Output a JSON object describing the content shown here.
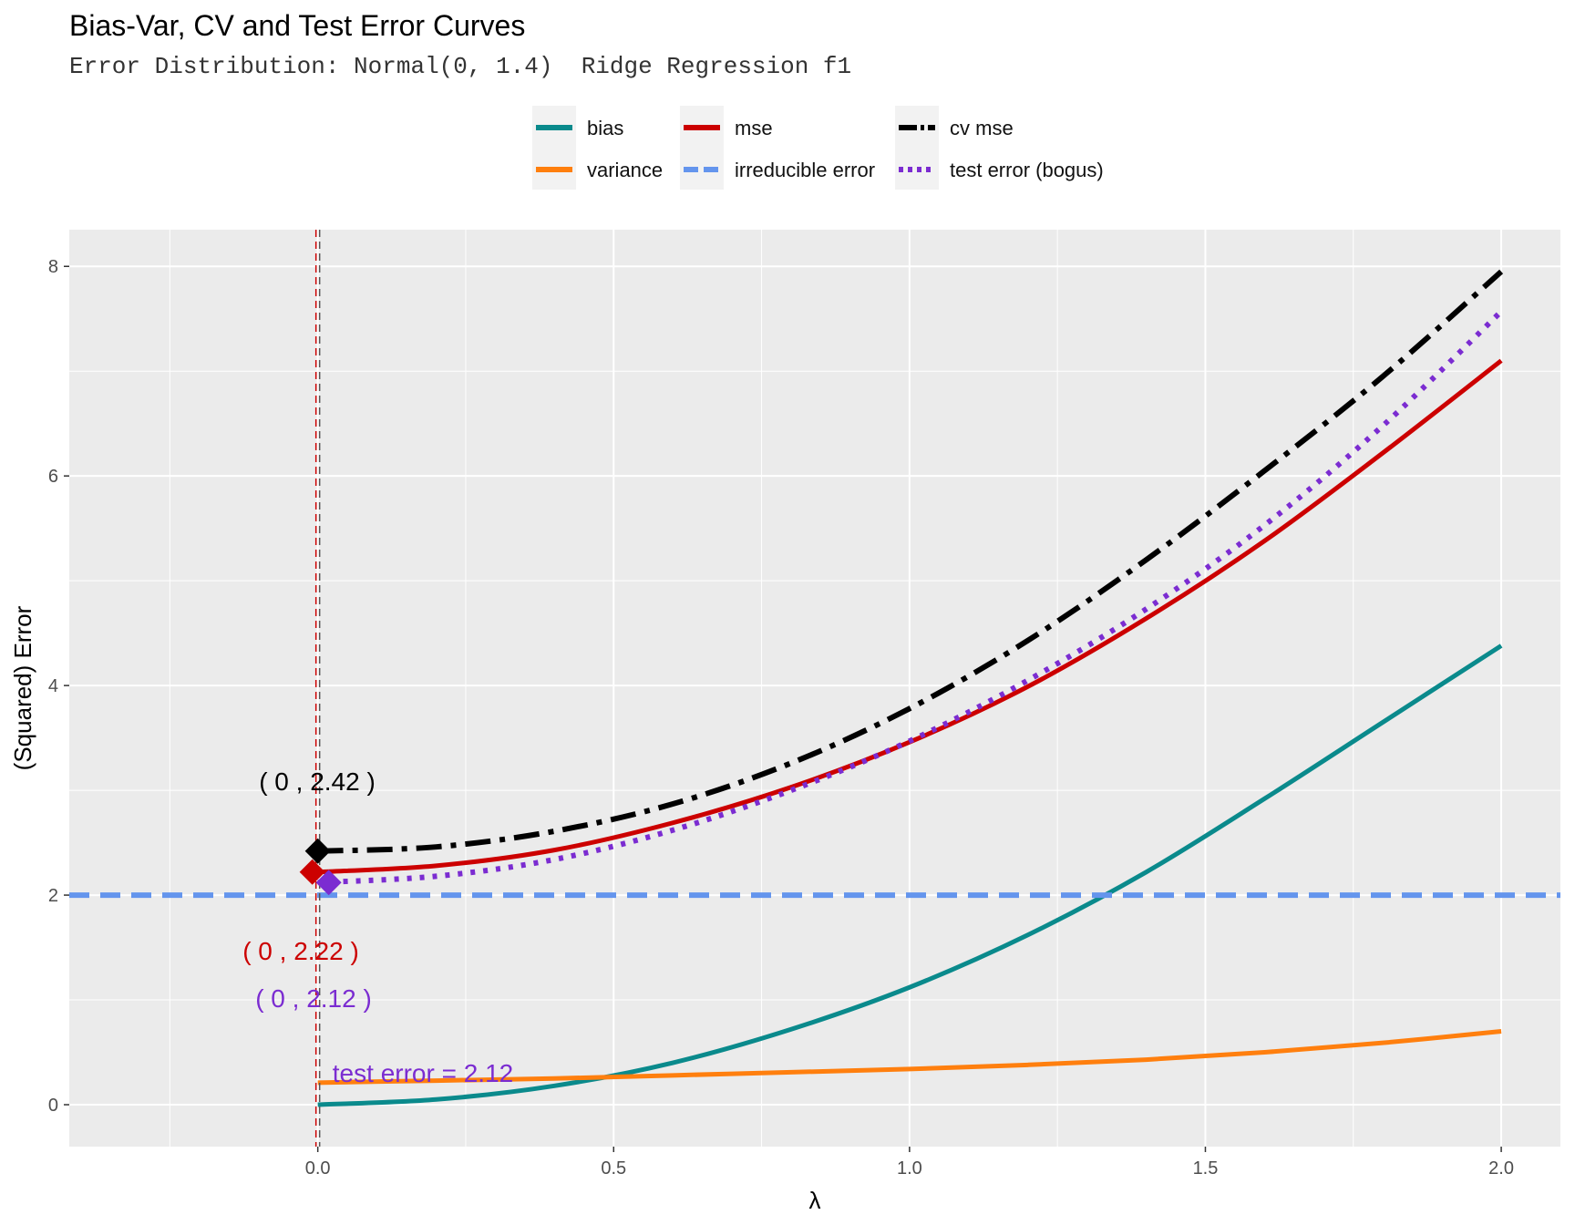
{
  "title": "Bias-Var, CV and Test Error Curves",
  "subtitle": "Error Distribution: Normal(0, 1.4)  Ridge Regression f1",
  "chart_data": {
    "type": "line",
    "title": "Bias-Var, CV and Test Error Curves",
    "subtitle": "Error Distribution: Normal(0, 1.4)  Ridge Regression f1",
    "xlabel": "λ",
    "ylabel": "(Squared) Error",
    "xlim": [
      -0.42,
      2.1
    ],
    "ylim": [
      -0.4,
      8.35
    ],
    "x_ticks": [
      0.0,
      0.5,
      1.0,
      1.5,
      2.0
    ],
    "x_tick_labels": [
      "0.0",
      "0.5",
      "1.0",
      "1.5",
      "2.0"
    ],
    "y_ticks": [
      0,
      2,
      4,
      6,
      8
    ],
    "y_tick_labels": [
      "0",
      "2",
      "4",
      "6",
      "8"
    ],
    "grid": true,
    "legend_position": "top",
    "x": [
      0.0,
      0.2,
      0.4,
      0.6,
      0.8,
      1.0,
      1.2,
      1.4,
      1.6,
      1.8,
      2.0
    ],
    "series": [
      {
        "name": "bias",
        "color": "#0a8a8c",
        "dash": "solid",
        "values": [
          0.0,
          0.05,
          0.18,
          0.4,
          0.72,
          1.12,
          1.62,
          2.22,
          2.92,
          3.65,
          4.38
        ]
      },
      {
        "name": "variance",
        "color": "#ff7f0e",
        "dash": "solid",
        "values": [
          0.21,
          0.23,
          0.25,
          0.28,
          0.31,
          0.34,
          0.38,
          0.43,
          0.5,
          0.59,
          0.7
        ]
      },
      {
        "name": "mse",
        "color": "#cc0000",
        "dash": "solid",
        "values": [
          2.22,
          2.28,
          2.43,
          2.69,
          3.03,
          3.46,
          3.99,
          4.64,
          5.38,
          6.22,
          7.1
        ]
      },
      {
        "name": "irreducible error",
        "color": "#6495ed",
        "dash": "dashed",
        "values": [
          2,
          2,
          2,
          2,
          2,
          2,
          2,
          2,
          2,
          2,
          2
        ]
      },
      {
        "name": "cv mse",
        "color": "#000000",
        "dash": "dotdash",
        "values": [
          2.42,
          2.46,
          2.61,
          2.87,
          3.26,
          3.78,
          4.43,
          5.2,
          6.05,
          6.95,
          7.95
        ]
      },
      {
        "name": "test error (bogus)",
        "color": "#7b2cd1",
        "dash": "dotted",
        "values": [
          2.12,
          2.18,
          2.34,
          2.62,
          3.0,
          3.47,
          4.05,
          4.73,
          5.53,
          6.48,
          7.57
        ]
      }
    ],
    "vlines": [
      {
        "x": 0.0,
        "color": "#cc0000",
        "dash": "dashed"
      },
      {
        "x": 0.0,
        "color": "#555555",
        "dash": "dashed"
      }
    ],
    "markers": [
      {
        "series": "cv mse",
        "x": 0.0,
        "y": 2.42,
        "color": "#000000",
        "shape": "diamond"
      },
      {
        "series": "mse",
        "x": 0.0,
        "y": 2.22,
        "color": "#cc0000",
        "shape": "diamond"
      },
      {
        "series": "test error (bogus)",
        "x": 0.0,
        "y": 2.12,
        "color": "#7b2cd1",
        "shape": "diamond"
      }
    ],
    "annotations": [
      {
        "text": "( 0 ,  2.42 )",
        "color": "#000000"
      },
      {
        "text": "( 0 ,  2.22 )",
        "color": "#cc0000"
      },
      {
        "text": "( 0 ,  2.12 )",
        "color": "#7b2cd1"
      },
      {
        "text": "test error =  2.12",
        "color": "#7b2cd1"
      }
    ]
  }
}
